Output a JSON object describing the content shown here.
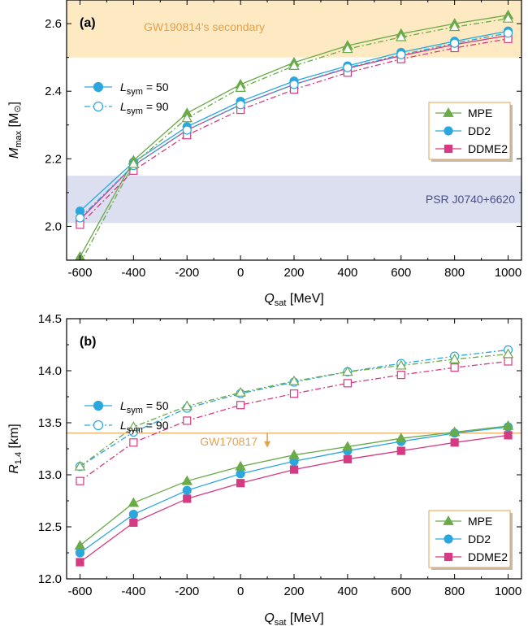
{
  "colors": {
    "MPE": "#6aaa48",
    "DD2": "#2ba7dd",
    "DDME2": "#d63a82",
    "gw190814_band": "#fde9c2",
    "gw190814_text": "#e8a04a",
    "psr_band": "#dcdff0",
    "psr_text": "#4a4f8a",
    "gw170817": "#e8a04a",
    "legend_border": "#e8a04a"
  },
  "chart_data": [
    {
      "type": "line",
      "panel": "(a)",
      "xlabel_main": "Q",
      "xlabel_sub": "sat",
      "xlabel_unit": " [MeV]",
      "ylabel_main": "M",
      "ylabel_sub": "max",
      "ylabel_unit": " [M",
      "ylabel_sun": "⊙",
      "ylabel_close": "]",
      "xlim": [
        -650,
        1050
      ],
      "ylim": [
        1.9,
        2.67
      ],
      "xticks": [
        "-600",
        "-400",
        "-200",
        "0",
        "200",
        "400",
        "600",
        "800",
        "1000"
      ],
      "xtick_values": [
        -600,
        -400,
        -200,
        0,
        200,
        400,
        600,
        800,
        1000
      ],
      "yticks": [
        "2.0",
        "2.2",
        "2.4",
        "2.6"
      ],
      "ytick_values": [
        2.0,
        2.2,
        2.4,
        2.6
      ],
      "x": [
        -600,
        -400,
        -200,
        0,
        200,
        400,
        600,
        800,
        1000
      ],
      "bands": [
        {
          "label": "GW190814's secondary",
          "y0": 2.5,
          "y1": 2.67,
          "color_key": "gw190814_band",
          "text_key": "gw190814_text",
          "label_pos": "top-left"
        },
        {
          "label": "PSR J0740+6620",
          "y0": 2.01,
          "y1": 2.15,
          "color_key": "psr_band",
          "text_key": "psr_text",
          "label_pos": "right"
        }
      ],
      "series": [
        {
          "name": "MPE",
          "marker": "triangle",
          "L": 50,
          "values": [
            1.91,
            2.195,
            2.335,
            2.42,
            2.485,
            2.535,
            2.57,
            2.6,
            2.625
          ]
        },
        {
          "name": "MPE",
          "marker": "triangle",
          "L": 90,
          "values": [
            1.89,
            2.185,
            2.32,
            2.41,
            2.475,
            2.525,
            2.56,
            2.59,
            2.615
          ]
        },
        {
          "name": "DD2",
          "marker": "circle",
          "L": 50,
          "values": [
            2.045,
            2.19,
            2.295,
            2.37,
            2.43,
            2.475,
            2.515,
            2.548,
            2.578
          ]
        },
        {
          "name": "DD2",
          "marker": "circle",
          "L": 90,
          "values": [
            2.025,
            2.18,
            2.285,
            2.36,
            2.42,
            2.47,
            2.508,
            2.542,
            2.572
          ]
        },
        {
          "name": "DDME2",
          "marker": "square",
          "L": 50,
          "values": [
            2.02,
            2.18,
            2.285,
            2.36,
            2.42,
            2.468,
            2.505,
            2.538,
            2.565
          ]
        },
        {
          "name": "DDME2",
          "marker": "square",
          "L": 90,
          "values": [
            2.005,
            2.165,
            2.27,
            2.345,
            2.405,
            2.455,
            2.495,
            2.528,
            2.555
          ]
        }
      ],
      "legend_eos": [
        "MPE",
        "DD2",
        "DDME2"
      ],
      "legend_eos_pos": "right",
      "legend_L": [
        {
          "label_main": "L",
          "label_sub": "sym",
          "label_val": " = 50",
          "style": "solid"
        },
        {
          "label_main": "L",
          "label_sub": "sym",
          "label_val": " = 90",
          "style": "dashdot"
        }
      ],
      "legend_L_pos": "top-left"
    },
    {
      "type": "line",
      "panel": "(b)",
      "xlabel_main": "Q",
      "xlabel_sub": "sat",
      "xlabel_unit": " [MeV]",
      "ylabel_main": "R",
      "ylabel_sub": "1.4",
      "ylabel_unit": " [km]",
      "xlim": [
        -650,
        1050
      ],
      "ylim": [
        12.0,
        14.5
      ],
      "xticks": [
        "-600",
        "-400",
        "-200",
        "0",
        "200",
        "400",
        "600",
        "800",
        "1000"
      ],
      "xtick_values": [
        -600,
        -400,
        -200,
        0,
        200,
        400,
        600,
        800,
        1000
      ],
      "yticks": [
        "12.0",
        "12.5",
        "13.0",
        "13.5",
        "14.0",
        "14.5"
      ],
      "ytick_values": [
        12.0,
        12.5,
        13.0,
        13.5,
        14.0,
        14.5
      ],
      "x": [
        -600,
        -400,
        -200,
        0,
        200,
        400,
        600,
        800,
        1000
      ],
      "hline": {
        "label": "GW170817",
        "y": 13.4,
        "arrow_x": 100,
        "color_key": "gw170817"
      },
      "series": [
        {
          "name": "MPE",
          "marker": "triangle",
          "L": 50,
          "values": [
            12.32,
            12.73,
            12.94,
            13.08,
            13.19,
            13.27,
            13.35,
            13.41,
            13.47
          ]
        },
        {
          "name": "MPE",
          "marker": "triangle",
          "L": 90,
          "values": [
            13.08,
            13.46,
            13.66,
            13.79,
            13.9,
            13.99,
            14.05,
            14.11,
            14.16
          ]
        },
        {
          "name": "DD2",
          "marker": "circle",
          "L": 50,
          "values": [
            12.25,
            12.62,
            12.85,
            13.01,
            13.13,
            13.23,
            13.32,
            13.4,
            13.46
          ]
        },
        {
          "name": "DD2",
          "marker": "circle",
          "L": 90,
          "values": [
            13.08,
            13.41,
            13.64,
            13.78,
            13.89,
            13.99,
            14.07,
            14.14,
            14.2
          ]
        },
        {
          "name": "DDME2",
          "marker": "square",
          "L": 50,
          "values": [
            12.16,
            12.54,
            12.77,
            12.92,
            13.05,
            13.15,
            13.23,
            13.31,
            13.38
          ]
        },
        {
          "name": "DDME2",
          "marker": "square",
          "L": 90,
          "values": [
            12.94,
            13.31,
            13.52,
            13.67,
            13.78,
            13.88,
            13.96,
            14.03,
            14.09
          ]
        }
      ],
      "legend_eos": [
        "MPE",
        "DD2",
        "DDME2"
      ],
      "legend_eos_pos": "bottom-right",
      "legend_L": [
        {
          "label_main": "L",
          "label_sub": "sym",
          "label_val": " = 50",
          "style": "solid"
        },
        {
          "label_main": "L",
          "label_sub": "sym",
          "label_val": " = 90",
          "style": "dashdot"
        }
      ],
      "legend_L_pos": "top-left"
    }
  ]
}
